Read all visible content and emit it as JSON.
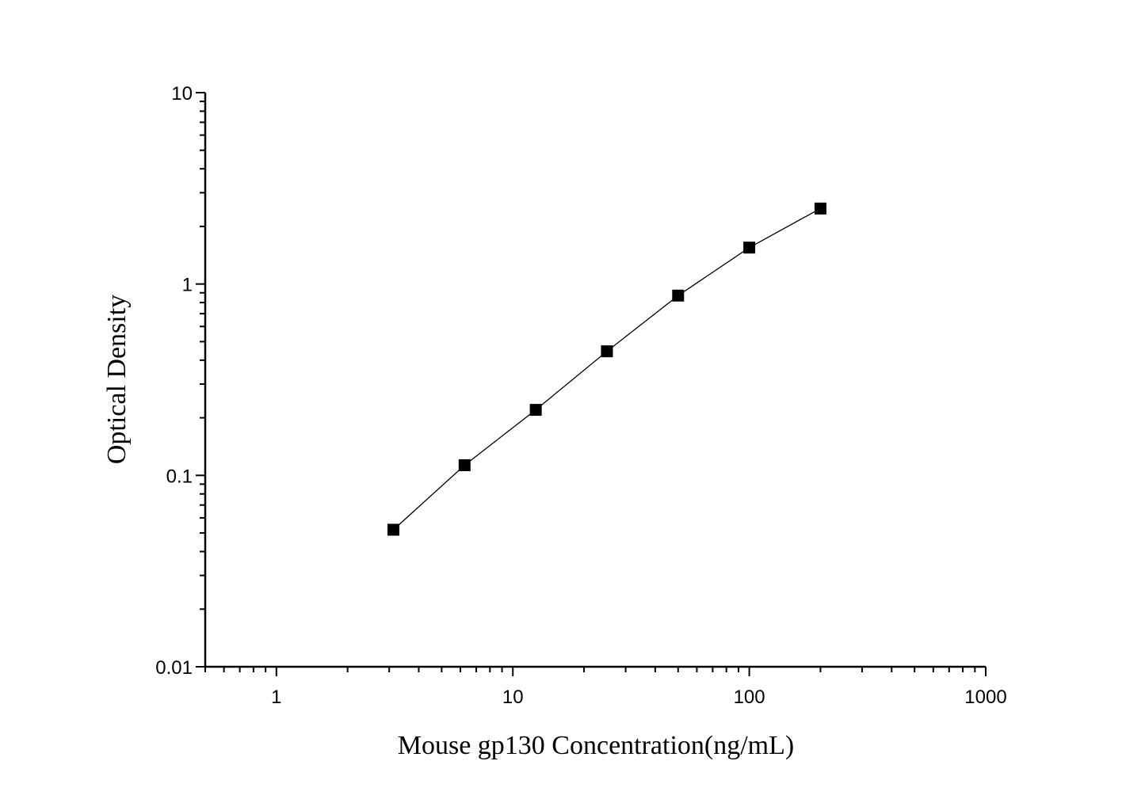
{
  "chart_data": {
    "type": "scatter",
    "xlabel": "Mouse gp130 Concentration(ng/mL)",
    "ylabel": "Optical Density",
    "xscale": "log",
    "yscale": "log",
    "xlim": [
      0.5,
      1000
    ],
    "ylim": [
      0.01,
      10
    ],
    "x_tick_labels": [
      "1",
      "10",
      "100",
      "1000"
    ],
    "y_tick_labels": [
      "0.01",
      "0.1",
      "1",
      "10"
    ],
    "grid": false,
    "marker": "square",
    "connected": true,
    "series": [
      {
        "x": [
          3.125,
          6.25,
          12.5,
          25,
          50,
          100,
          200
        ],
        "y": [
          0.052,
          0.113,
          0.22,
          0.445,
          0.87,
          1.55,
          2.48
        ]
      }
    ],
    "colors": {
      "marker": "#000000",
      "line": "#000000"
    }
  }
}
